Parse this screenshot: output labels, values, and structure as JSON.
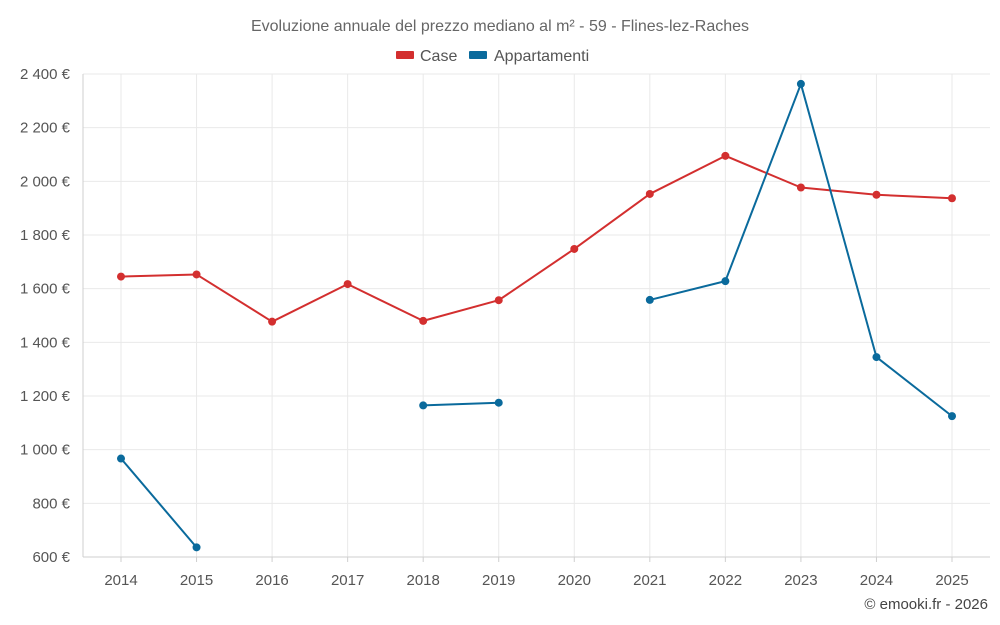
{
  "chart_data": {
    "type": "line",
    "title": "Evoluzione annuale del prezzo mediano al m² - 59 - Flines-lez-Raches",
    "xlabel": "",
    "ylabel": "",
    "categories": [
      "2014",
      "2015",
      "2016",
      "2017",
      "2018",
      "2019",
      "2020",
      "2021",
      "2022",
      "2023",
      "2024",
      "2025"
    ],
    "ylim": [
      600,
      2400
    ],
    "yticks": [
      600,
      800,
      1000,
      1200,
      1400,
      1600,
      1800,
      2000,
      2200,
      2400
    ],
    "ytick_labels": [
      "600 €",
      "800 €",
      "1 000 €",
      "1 200 €",
      "1 400 €",
      "1 600 €",
      "1 800 €",
      "2 000 €",
      "2 200 €",
      "2 400 €"
    ],
    "grid": true,
    "legend_position": "top-center",
    "series": [
      {
        "name": "Case",
        "color": "#d32f2f",
        "values": [
          1645,
          1653,
          1477,
          1617,
          1480,
          1557,
          1748,
          1953,
          2095,
          1977,
          1950,
          1937
        ]
      },
      {
        "name": "Appartamenti",
        "color": "#0a6a9c",
        "values": [
          967,
          636,
          null,
          null,
          1165,
          1175,
          null,
          1558,
          1628,
          2363,
          1345,
          1125
        ]
      }
    ]
  },
  "credit": "© emooki.fr - 2026"
}
